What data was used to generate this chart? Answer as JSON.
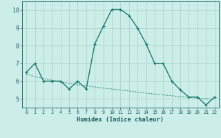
{
  "xlabel": "Humidex (Indice chaleur)",
  "ylabel": "",
  "x": [
    0,
    1,
    2,
    3,
    4,
    5,
    6,
    7,
    8,
    9,
    10,
    11,
    12,
    13,
    14,
    15,
    16,
    17,
    18,
    19,
    20,
    21,
    22
  ],
  "y_main": [
    6.5,
    7.0,
    6.0,
    6.0,
    6.0,
    5.55,
    6.0,
    5.55,
    8.1,
    9.1,
    10.05,
    10.05,
    9.7,
    9.0,
    8.1,
    7.0,
    7.0,
    6.0,
    5.5,
    5.1,
    5.1,
    4.65,
    5.1
  ],
  "y_trend": [
    6.4,
    6.25,
    6.15,
    6.05,
    5.95,
    5.87,
    5.8,
    5.73,
    5.67,
    5.6,
    5.55,
    5.5,
    5.44,
    5.38,
    5.32,
    5.27,
    5.22,
    5.17,
    5.12,
    5.08,
    5.04,
    5.01,
    4.97
  ],
  "xlim": [
    -0.5,
    22.5
  ],
  "ylim": [
    4.5,
    10.5
  ],
  "yticks": [
    5,
    6,
    7,
    8,
    9,
    10
  ],
  "xticks": [
    0,
    1,
    2,
    3,
    4,
    5,
    6,
    7,
    8,
    9,
    10,
    11,
    12,
    13,
    14,
    15,
    16,
    17,
    18,
    19,
    20,
    21,
    22
  ],
  "line_color": "#1a7a6a",
  "bg_color": "#cceee8",
  "grid_color": "#aaccc8",
  "text_color": "#1a5a5a",
  "marker": "+",
  "linewidth": 1.0
}
